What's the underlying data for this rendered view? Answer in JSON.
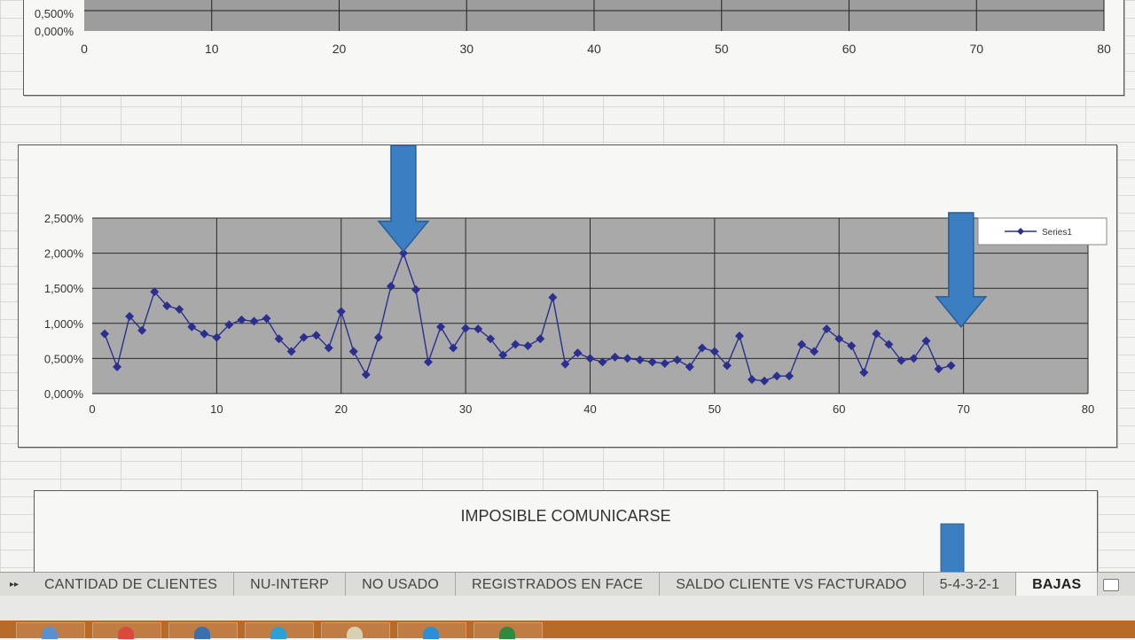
{
  "sheet_tabs": [
    {
      "label": "CANTIDAD DE CLIENTES",
      "active": false
    },
    {
      "label": "NU-INTERP",
      "active": false
    },
    {
      "label": "NO USADO",
      "active": false
    },
    {
      "label": "REGISTRADOS EN FACE",
      "active": false
    },
    {
      "label": "SALDO CLIENTE VS FACTURADO",
      "active": false
    },
    {
      "label": "5-4-3-2-1",
      "active": false
    },
    {
      "label": "BAJAS",
      "active": true
    }
  ],
  "tab_nav_icon": "scroll-right-icon",
  "add_sheet_icon": "new-sheet-icon",
  "top_chart": {
    "y_tick_labels": [
      "0,000%",
      "0,500%"
    ],
    "x_tick_labels": [
      "0",
      "10",
      "20",
      "30",
      "40",
      "50",
      "60",
      "70",
      "80"
    ],
    "xlim": [
      0,
      80
    ]
  },
  "bottom_chart": {
    "title": "IMPOSIBLE  COMUNICARSE"
  },
  "chart_data": {
    "type": "scatter",
    "series": [
      {
        "name": "Series1",
        "x": [
          1,
          2,
          3,
          4,
          5,
          6,
          7,
          8,
          9,
          10,
          11,
          12,
          13,
          14,
          15,
          16,
          17,
          18,
          19,
          20,
          21,
          22,
          23,
          24,
          25,
          26,
          27,
          28,
          29,
          30,
          31,
          32,
          33,
          34,
          35,
          36,
          37,
          38,
          39,
          40,
          41,
          42,
          43,
          44,
          45,
          46,
          47,
          48,
          49,
          50,
          51,
          52,
          53,
          54,
          55,
          56,
          57,
          58,
          59,
          60,
          61,
          62,
          63,
          64,
          65,
          66,
          67,
          68,
          69
        ],
        "values": [
          0.85,
          0.38,
          1.1,
          0.9,
          1.45,
          1.25,
          1.2,
          0.95,
          0.85,
          0.8,
          0.98,
          1.05,
          1.03,
          1.07,
          0.78,
          0.6,
          0.8,
          0.83,
          0.65,
          1.17,
          0.6,
          0.27,
          0.8,
          1.53,
          2.0,
          1.48,
          0.45,
          0.95,
          0.65,
          0.93,
          0.92,
          0.78,
          0.55,
          0.7,
          0.68,
          0.78,
          1.37,
          0.42,
          0.58,
          0.5,
          0.45,
          0.52,
          0.5,
          0.48,
          0.45,
          0.43,
          0.48,
          0.38,
          0.65,
          0.6,
          0.4,
          0.82,
          0.2,
          0.18,
          0.25,
          0.25,
          0.7,
          0.6,
          0.92,
          0.78,
          0.68,
          0.3,
          0.85,
          0.7,
          0.47,
          0.5,
          0.75,
          0.35,
          0.4
        ]
      }
    ],
    "x_ticks": [
      0,
      10,
      20,
      30,
      40,
      50,
      60,
      70,
      80
    ],
    "y_tick_labels": [
      "0,000%",
      "0,500%",
      "1,000%",
      "1,500%",
      "2,000%",
      "2,500%"
    ],
    "xlim": [
      0,
      80
    ],
    "ylim": [
      0,
      2.5
    ],
    "y_unit": "%",
    "grid": true,
    "legend_position": "top-right",
    "line_color": "#2b2f8f",
    "plot_background": "#a9a9a9",
    "annotation_color": "#3b7ec2",
    "annotations": [
      {
        "type": "arrow-down",
        "x": 25
      },
      {
        "type": "arrow-down",
        "x": 69.8
      }
    ]
  }
}
